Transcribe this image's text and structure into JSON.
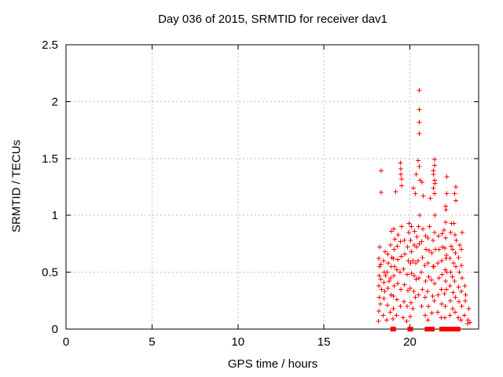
{
  "title": "Day 036 of 2015, SRMTID for receiver dav1",
  "chart_data": {
    "type": "scatter",
    "title": "Day 036 of 2015, SRMTID for receiver dav1",
    "xlabel": "GPS time / hours",
    "ylabel": "SRMTID / TECUs",
    "xlim": [
      0,
      24
    ],
    "ylim": [
      0,
      2.5
    ],
    "xticks": [
      0,
      5,
      10,
      15,
      20
    ],
    "yticks": [
      0,
      0.5,
      1,
      1.5,
      2,
      2.5
    ],
    "grid": true,
    "legend": "none",
    "marker": "plus",
    "marker_color": "#ff0000",
    "grid_color": "#bfbfbf",
    "series": [
      {
        "name": "SRMTID",
        "points": [
          [
            18.18,
            0.07
          ],
          [
            18.2,
            0.16
          ],
          [
            18.22,
            0.28
          ],
          [
            18.19,
            0.38
          ],
          [
            18.21,
            0.47
          ],
          [
            18.23,
            0.55
          ],
          [
            18.2,
            0.62
          ],
          [
            18.24,
            0.72
          ],
          [
            18.28,
            0.22
          ],
          [
            18.3,
            0.44
          ],
          [
            18.3,
            0.57
          ],
          [
            18.33,
            1.39
          ],
          [
            18.33,
            1.2
          ],
          [
            18.35,
            0.35
          ],
          [
            18.45,
            0.12
          ],
          [
            18.48,
            0.27
          ],
          [
            18.5,
            0.41
          ],
          [
            18.52,
            0.5
          ],
          [
            18.47,
            0.6
          ],
          [
            18.55,
            0.68
          ],
          [
            18.53,
            0.33
          ],
          [
            18.58,
            0.47
          ],
          [
            18.65,
            0.08
          ],
          [
            18.7,
            0.21
          ],
          [
            18.72,
            0.36
          ],
          [
            18.68,
            0.5
          ],
          [
            18.75,
            0.58
          ],
          [
            18.73,
            0.66
          ],
          [
            18.78,
            0.42
          ],
          [
            18.85,
            0.15
          ],
          [
            18.9,
            0.3
          ],
          [
            18.88,
            0.45
          ],
          [
            18.92,
            0.55
          ],
          [
            18.95,
            0.63
          ],
          [
            18.87,
            0.74
          ],
          [
            18.93,
            0.86
          ],
          [
            19.0,
            0
          ],
          [
            19.05,
            0
          ],
          [
            19.02,
            0.09
          ],
          [
            19.05,
            0.18
          ],
          [
            19.03,
            0.29
          ],
          [
            19.08,
            0.38
          ],
          [
            19.06,
            0.47
          ],
          [
            19.1,
            0.55
          ],
          [
            19.04,
            0.62
          ],
          [
            19.09,
            0.7
          ],
          [
            19.12,
            0.79
          ],
          [
            19.07,
            0.88
          ],
          [
            19.17,
            1.21
          ],
          [
            19.22,
            0.12
          ],
          [
            19.25,
            0.26
          ],
          [
            19.28,
            0.4
          ],
          [
            19.24,
            0.52
          ],
          [
            19.3,
            0.61
          ],
          [
            19.27,
            0.73
          ],
          [
            19.32,
            0.83
          ],
          [
            19.44,
            1.46
          ],
          [
            19.47,
            1.41
          ],
          [
            19.47,
            1.36
          ],
          [
            19.51,
            1.32
          ],
          [
            19.51,
            1.26
          ],
          [
            19.45,
            0.2
          ],
          [
            19.48,
            0.35
          ],
          [
            19.43,
            0.5
          ],
          [
            19.5,
            0.64
          ],
          [
            19.46,
            0.77
          ],
          [
            19.52,
            0.9
          ],
          [
            19.62,
            0.1
          ],
          [
            19.65,
            0.24
          ],
          [
            19.68,
            0.39
          ],
          [
            19.63,
            0.53
          ],
          [
            19.7,
            0.66
          ],
          [
            19.67,
            0.78
          ],
          [
            19.82,
            0.07
          ],
          [
            19.85,
            0.2
          ],
          [
            19.88,
            0.34
          ],
          [
            19.83,
            0.48
          ],
          [
            19.9,
            0.6
          ],
          [
            19.86,
            0.72
          ],
          [
            19.92,
            0.85
          ],
          [
            19.95,
            0.93
          ],
          [
            20.0,
            0
          ],
          [
            20.05,
            0
          ],
          [
            20.02,
            0.11
          ],
          [
            20.06,
            0.23
          ],
          [
            20.03,
            0.36
          ],
          [
            20.08,
            0.49
          ],
          [
            20.05,
            0.58
          ],
          [
            20.1,
            0.68
          ],
          [
            20.04,
            0.78
          ],
          [
            20.09,
            0.9
          ],
          [
            20.2,
            1.24
          ],
          [
            20.18,
            0.18
          ],
          [
            20.22,
            0.33
          ],
          [
            20.25,
            0.47
          ],
          [
            20.19,
            0.6
          ],
          [
            20.24,
            0.74
          ],
          [
            20.28,
            0.86
          ],
          [
            20.36,
            1.36
          ],
          [
            20.33,
            0.28
          ],
          [
            20.37,
            0.44
          ],
          [
            20.34,
            0.58
          ],
          [
            20.39,
            0.72
          ],
          [
            20.42,
            0.81
          ],
          [
            20.54,
            2.1
          ],
          [
            20.54,
            1.93
          ],
          [
            20.54,
            1.82
          ],
          [
            20.54,
            1.72
          ],
          [
            20.47,
            1.48
          ],
          [
            20.54,
            1.43
          ],
          [
            20.59,
            1.31
          ],
          [
            20.7,
            1.29
          ],
          [
            20.31,
            1.19
          ],
          [
            20.77,
            1.17
          ],
          [
            20.5,
            0.3
          ],
          [
            20.52,
            0.45
          ],
          [
            20.48,
            0.6
          ],
          [
            20.55,
            0.75
          ],
          [
            20.51,
            0.9
          ],
          [
            20.56,
            1.0
          ],
          [
            20.68,
            0.2
          ],
          [
            20.72,
            0.35
          ],
          [
            20.66,
            0.5
          ],
          [
            20.74,
            0.63
          ],
          [
            20.69,
            0.77
          ],
          [
            20.75,
            0.88
          ],
          [
            20.88,
            0.12
          ],
          [
            20.9,
            0.28
          ],
          [
            20.92,
            0.42
          ],
          [
            20.87,
            0.56
          ],
          [
            20.94,
            0.7
          ],
          [
            20.91,
            0.82
          ],
          [
            21.0,
            0
          ],
          [
            21.1,
            0
          ],
          [
            21.18,
            1.15
          ],
          [
            21.05,
            0.08
          ],
          [
            21.08,
            0.2
          ],
          [
            21.03,
            0.33
          ],
          [
            21.1,
            0.46
          ],
          [
            21.06,
            0.58
          ],
          [
            21.12,
            0.69
          ],
          [
            21.04,
            0.8
          ],
          [
            21.14,
            0.9
          ],
          [
            21.3,
            0
          ],
          [
            21.28,
            0.14
          ],
          [
            21.32,
            0.29
          ],
          [
            21.26,
            0.43
          ],
          [
            21.34,
            0.55
          ],
          [
            21.29,
            0.67
          ],
          [
            21.35,
            0.78
          ],
          [
            21.43,
            1.49
          ],
          [
            21.43,
            1.44
          ],
          [
            21.38,
            1.39
          ],
          [
            21.38,
            1.36
          ],
          [
            21.43,
            1.31
          ],
          [
            21.46,
            1.28
          ],
          [
            21.38,
            1.24
          ],
          [
            21.43,
            1.19
          ],
          [
            21.42,
            0.25
          ],
          [
            21.45,
            0.4
          ],
          [
            21.4,
            0.55
          ],
          [
            21.48,
            0.7
          ],
          [
            21.44,
            0.85
          ],
          [
            21.47,
            1.0
          ],
          [
            21.62,
            0.15
          ],
          [
            21.65,
            0.3
          ],
          [
            21.68,
            0.45
          ],
          [
            21.63,
            0.58
          ],
          [
            21.7,
            0.7
          ],
          [
            21.66,
            0.82
          ],
          [
            21.85,
            0
          ],
          [
            21.82,
            0.1
          ],
          [
            21.86,
            0.22
          ],
          [
            21.83,
            0.35
          ],
          [
            21.88,
            0.48
          ],
          [
            21.84,
            0.6
          ],
          [
            21.9,
            0.72
          ],
          [
            21.87,
            0.84
          ],
          [
            22.0,
            0
          ],
          [
            22.1,
            0
          ],
          [
            22.14,
            1.34
          ],
          [
            22.14,
            1.19
          ],
          [
            22.07,
            1.08
          ],
          [
            22.11,
            1.05
          ],
          [
            21.99,
            0.87
          ],
          [
            22.07,
            0.94
          ],
          [
            22.03,
            0.1
          ],
          [
            22.06,
            0.2
          ],
          [
            22.02,
            0.31
          ],
          [
            22.08,
            0.42
          ],
          [
            22.05,
            0.52
          ],
          [
            22.1,
            0.62
          ],
          [
            22.04,
            0.71
          ],
          [
            22.09,
            0.8
          ],
          [
            22.12,
            0.35
          ],
          [
            22.15,
            0.5
          ],
          [
            22.13,
            0.65
          ],
          [
            22.35,
            0
          ],
          [
            22.32,
            0.12
          ],
          [
            22.36,
            0.25
          ],
          [
            22.33,
            0.38
          ],
          [
            22.38,
            0.5
          ],
          [
            22.34,
            0.62
          ],
          [
            22.4,
            0.73
          ],
          [
            22.37,
            0.85
          ],
          [
            22.42,
            0.93
          ],
          [
            22.48,
            0.18
          ],
          [
            22.52,
            0.32
          ],
          [
            22.47,
            0.46
          ],
          [
            22.54,
            0.58
          ],
          [
            22.5,
            0.7
          ],
          [
            22.57,
            0.93
          ],
          [
            22.6,
            0
          ],
          [
            22.7,
            0
          ],
          [
            22.67,
            1.25
          ],
          [
            22.6,
            1.19
          ],
          [
            22.67,
            1.13
          ],
          [
            22.63,
            0.83
          ],
          [
            22.62,
            0.15
          ],
          [
            22.66,
            0.28
          ],
          [
            22.61,
            0.42
          ],
          [
            22.68,
            0.55
          ],
          [
            22.64,
            0.67
          ],
          [
            22.7,
            0.78
          ],
          [
            22.8,
            0
          ],
          [
            22.82,
            0.1
          ],
          [
            22.86,
            0.24
          ],
          [
            22.83,
            0.37
          ],
          [
            22.88,
            0.5
          ],
          [
            22.84,
            0.63
          ],
          [
            22.9,
            0.74
          ],
          [
            22.98,
            0.08
          ],
          [
            23.02,
            0.2
          ],
          [
            22.99,
            0.33
          ],
          [
            23.05,
            0.45
          ],
          [
            23.0,
            0.56
          ],
          [
            23.0,
            0.7
          ],
          [
            23.05,
            0.85
          ],
          [
            23.18,
            0.12
          ],
          [
            23.22,
            0.25
          ],
          [
            23.19,
            0.38
          ],
          [
            23.25,
            0.3
          ],
          [
            23.35,
            0.05
          ],
          [
            23.38,
            0.08
          ],
          [
            23.42,
            0.18
          ],
          [
            23.5,
            0.06
          ]
        ]
      }
    ]
  }
}
